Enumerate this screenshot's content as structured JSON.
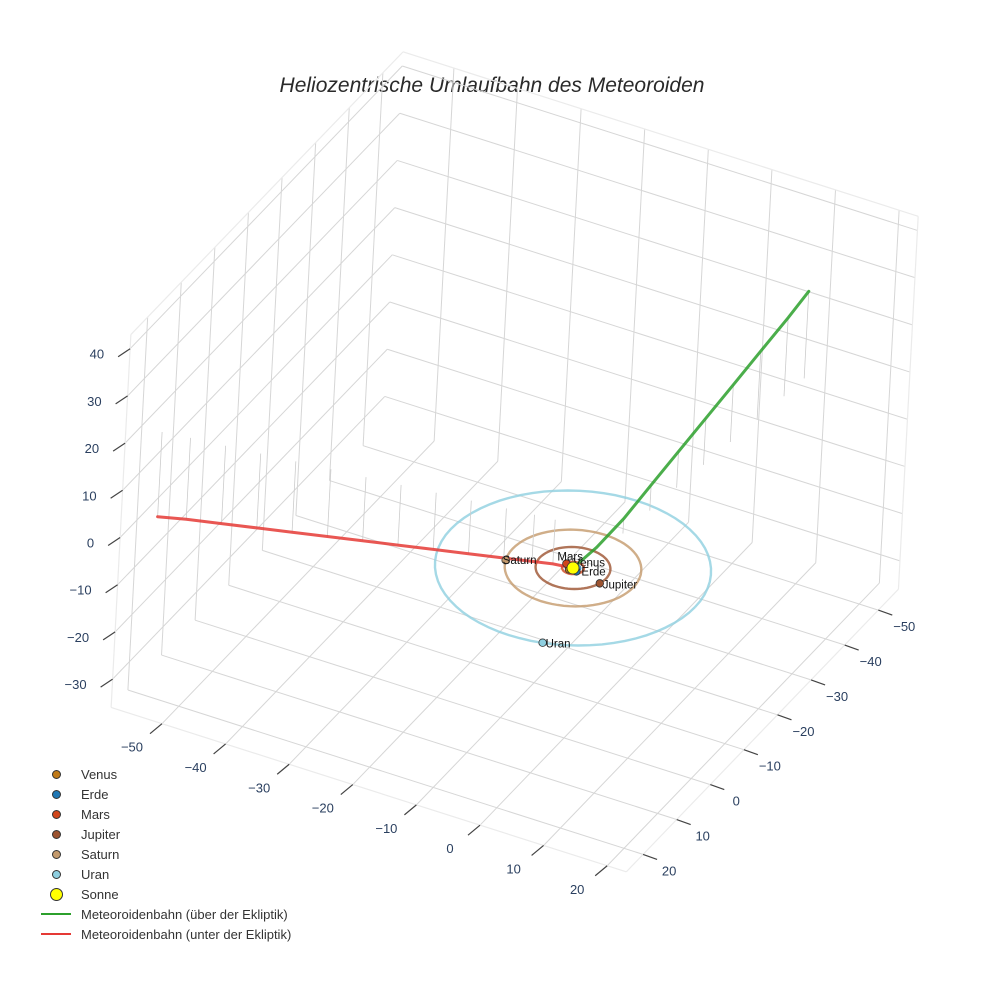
{
  "title": "Heliozentrische Umlaufbahn des Meteoroiden",
  "chart_data": {
    "type": "scatter3d",
    "title": "Heliozentrische Umlaufbahn des Meteoroiden",
    "axes": {
      "x": {
        "label": "",
        "ticks": [
          -50,
          -40,
          -30,
          -20,
          -10,
          0,
          10,
          20
        ],
        "range": [
          -58,
          23
        ]
      },
      "y": {
        "label": "",
        "ticks": [
          -50,
          -40,
          -30,
          -20,
          -10,
          0,
          10,
          20
        ],
        "range": [
          -56,
          25
        ]
      },
      "z": {
        "label": "",
        "ticks": [
          -30,
          -20,
          -10,
          0,
          10,
          20,
          30,
          40
        ],
        "range": [
          -36,
          43
        ]
      },
      "grid": true
    },
    "planets": [
      {
        "name": "Venus",
        "color": "#c07a18",
        "orbit_radius": 0.72,
        "x": -0.3,
        "y": 0.6,
        "z": 0
      },
      {
        "name": "Erde",
        "color": "#1f77b4",
        "orbit_radius": 1.0,
        "x": 0.8,
        "y": 0.5,
        "z": 0
      },
      {
        "name": "Mars",
        "color": "#d0461b",
        "orbit_radius": 1.52,
        "x": -1.3,
        "y": -0.5,
        "z": 0
      },
      {
        "name": "Jupiter",
        "color": "#9c5330",
        "orbit_radius": 5.2,
        "x": 5.0,
        "y": 1.5,
        "z": 0
      },
      {
        "name": "Saturn",
        "color": "#c49a6c",
        "orbit_radius": 9.5,
        "x": -9.0,
        "y": 3.0,
        "z": 0
      },
      {
        "name": "Uran",
        "color": "#8ecfe0",
        "orbit_radius": 19.2,
        "x": 5.0,
        "y": 18.5,
        "z": 0
      },
      {
        "name": "Sonne",
        "color": "#ffff00",
        "x": 0,
        "y": 0,
        "z": 0
      }
    ],
    "series": [
      {
        "name": "Meteoroidenbahn (über der Ekliptik)",
        "color": "#2ca02c",
        "points": [
          [
            0,
            0,
            0
          ],
          [
            2,
            -3,
            3
          ],
          [
            4,
            -7,
            7
          ],
          [
            6,
            -11,
            12
          ],
          [
            8,
            -15,
            17
          ],
          [
            10,
            -19,
            22
          ],
          [
            12,
            -23,
            27
          ],
          [
            14,
            -27,
            32
          ],
          [
            16,
            -31,
            37
          ],
          [
            17.5,
            -34,
            41
          ]
        ]
      },
      {
        "name": "Meteoroidenbahn (unter der Ekliptik)",
        "color": "#e53935",
        "points": [
          [
            0,
            0,
            0
          ],
          [
            -3,
            0.3,
            -0.2
          ],
          [
            -6,
            0.8,
            -0.6
          ],
          [
            -10,
            1.6,
            -1
          ],
          [
            -15,
            2.6,
            -1.5
          ],
          [
            -20,
            3.6,
            -2
          ],
          [
            -25,
            4.6,
            -2.5
          ],
          [
            -30,
            5.6,
            -3
          ],
          [
            -35,
            6.6,
            -3.5
          ],
          [
            -40,
            7.6,
            -4
          ],
          [
            -45,
            8.6,
            -4.5
          ],
          [
            -50,
            9.6,
            -5
          ],
          [
            -55,
            10.6,
            -5.5
          ],
          [
            -59,
            11.5,
            -6
          ]
        ]
      }
    ],
    "legend_position": "bottom-left"
  },
  "legend": {
    "items": [
      {
        "label": "Venus",
        "kind": "dot",
        "color": "#c07a18",
        "size": 9
      },
      {
        "label": "Erde",
        "kind": "dot",
        "color": "#1f77b4",
        "size": 9
      },
      {
        "label": "Mars",
        "kind": "dot",
        "color": "#d0461b",
        "size": 9
      },
      {
        "label": "Jupiter",
        "kind": "dot",
        "color": "#9c5330",
        "size": 9
      },
      {
        "label": "Saturn",
        "kind": "dot",
        "color": "#c49a6c",
        "size": 9
      },
      {
        "label": "Uran",
        "kind": "dot",
        "color": "#8ecfe0",
        "size": 9
      },
      {
        "label": "Sonne",
        "kind": "dot",
        "color": "#ffff00",
        "size": 13
      },
      {
        "label": "Meteoroidenbahn (über der Ekliptik)",
        "kind": "line",
        "color": "#2ca02c"
      },
      {
        "label": "Meteoroidenbahn (unter der Ekliptik)",
        "kind": "line",
        "color": "#e53935"
      }
    ]
  }
}
